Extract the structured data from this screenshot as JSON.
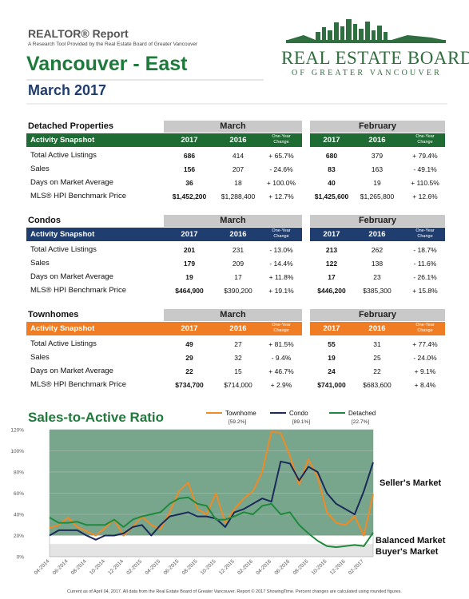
{
  "header": {
    "report_title": "REALTOR® Report",
    "tagline": "A Research Tool Provided by the Real Estate Board of Greater Vancouver",
    "area": "Vancouver - East",
    "period": "March 2017"
  },
  "logo": {
    "line1": "REAL ESTATE BOARD",
    "line2": "OF GREATER VANCOUVER"
  },
  "sections": [
    {
      "name": "Detached Properties",
      "snapshot": "Activity Snapshot",
      "color": "#1e6b34",
      "groups": [
        "March",
        "February"
      ],
      "columns": [
        "2017",
        "2016",
        "One-Year Change"
      ],
      "rows": [
        {
          "label": "Total Active Listings",
          "cells": [
            "686",
            "414",
            "+ 65.7%",
            "680",
            "379",
            "+ 79.4%"
          ]
        },
        {
          "label": "Sales",
          "cells": [
            "156",
            "207",
            "- 24.6%",
            "83",
            "163",
            "- 49.1%"
          ]
        },
        {
          "label": "Days on Market Average",
          "cells": [
            "36",
            "18",
            "+ 100.0%",
            "40",
            "19",
            "+ 110.5%"
          ]
        },
        {
          "label": "MLS® HPI Benchmark Price",
          "cells": [
            "$1,452,200",
            "$1,288,400",
            "+ 12.7%",
            "$1,425,600",
            "$1,265,800",
            "+ 12.6%"
          ]
        }
      ]
    },
    {
      "name": "Condos",
      "snapshot": "Activity Snapshot",
      "color": "#1f3d6e",
      "groups": [
        "March",
        "February"
      ],
      "columns": [
        "2017",
        "2016",
        "One-Year Change"
      ],
      "rows": [
        {
          "label": "Total Active Listings",
          "cells": [
            "201",
            "231",
            "- 13.0%",
            "213",
            "262",
            "- 18.7%"
          ]
        },
        {
          "label": "Sales",
          "cells": [
            "179",
            "209",
            "- 14.4%",
            "122",
            "138",
            "- 11.6%"
          ]
        },
        {
          "label": "Days on Market Average",
          "cells": [
            "19",
            "17",
            "+ 11.8%",
            "17",
            "23",
            "- 26.1%"
          ]
        },
        {
          "label": "MLS® HPI Benchmark Price",
          "cells": [
            "$464,900",
            "$390,200",
            "+ 19.1%",
            "$446,200",
            "$385,300",
            "+ 15.8%"
          ]
        }
      ]
    },
    {
      "name": "Townhomes",
      "snapshot": "Activity Snapshot",
      "color": "#f07d24",
      "groups": [
        "March",
        "February"
      ],
      "columns": [
        "2017",
        "2016",
        "One-Year Change"
      ],
      "rows": [
        {
          "label": "Total Active Listings",
          "cells": [
            "49",
            "27",
            "+ 81.5%",
            "55",
            "31",
            "+ 77.4%"
          ]
        },
        {
          "label": "Sales",
          "cells": [
            "29",
            "32",
            "- 9.4%",
            "19",
            "25",
            "- 24.0%"
          ]
        },
        {
          "label": "Days on Market Average",
          "cells": [
            "22",
            "15",
            "+ 46.7%",
            "24",
            "22",
            "+ 9.1%"
          ]
        },
        {
          "label": "MLS® HPI Benchmark Price",
          "cells": [
            "$734,700",
            "$714,000",
            "+ 2.9%",
            "$741,000",
            "$683,600",
            "+ 8.4%"
          ]
        }
      ]
    }
  ],
  "chart_data": {
    "type": "line",
    "title": "Sales-to-Active Ratio",
    "categories": [
      "04-2014",
      null,
      "06-2014",
      null,
      "08-2014",
      null,
      "10-2014",
      null,
      "12-2014",
      null,
      "02-2015",
      null,
      "04-2015",
      null,
      "06-2015",
      null,
      "08-2015",
      null,
      "10-2015",
      null,
      "12-2015",
      null,
      "02-2016",
      null,
      "04-2016",
      null,
      "06-2016",
      null,
      "08-2016",
      null,
      "10-2016",
      null,
      "12-2016",
      null,
      "02-2017",
      null
    ],
    "series": [
      {
        "name": "Townhome",
        "last_label": "[59.2%]",
        "color": "#f08a24",
        "values": [
          27,
          30,
          37,
          28,
          24,
          20,
          27,
          35,
          20,
          28,
          38,
          30,
          26,
          42,
          62,
          70,
          45,
          40,
          60,
          32,
          45,
          55,
          62,
          80,
          118,
          117,
          95,
          68,
          92,
          75,
          42,
          32,
          30,
          38,
          20,
          59.2
        ]
      },
      {
        "name": "Condo",
        "last_label": "[89.1%]",
        "color": "#1c2a5a",
        "values": [
          20,
          25,
          25,
          25,
          20,
          16,
          20,
          20,
          22,
          28,
          30,
          20,
          30,
          38,
          40,
          42,
          38,
          38,
          36,
          28,
          42,
          45,
          50,
          55,
          52,
          90,
          88,
          72,
          85,
          80,
          60,
          50,
          45,
          40,
          62,
          89.1
        ]
      },
      {
        "name": "Detached",
        "last_label": "[22.7%]",
        "color": "#1e8a3c",
        "values": [
          37,
          32,
          32,
          33,
          30,
          30,
          30,
          35,
          28,
          35,
          38,
          40,
          42,
          50,
          55,
          56,
          50,
          48,
          35,
          35,
          38,
          42,
          40,
          48,
          50,
          40,
          42,
          30,
          22,
          15,
          10,
          9,
          10,
          11,
          10,
          22.7
        ]
      }
    ],
    "ylim": [
      0,
      120
    ],
    "yticks": [
      {
        "value": 0,
        "label": "0%"
      },
      {
        "value": 20,
        "label": "20%"
      },
      {
        "value": 40,
        "label": "40%"
      },
      {
        "value": 60,
        "label": "60%"
      },
      {
        "value": 80,
        "label": "80%"
      },
      {
        "value": 100,
        "label": "100%"
      },
      {
        "value": 120,
        "label": "120%"
      }
    ],
    "zones": [
      {
        "label": "Seller's Market",
        "from": 20,
        "to": 120,
        "color": "#77a68c"
      },
      {
        "label": "Balanced Market",
        "from": 12,
        "to": 20,
        "color": "#ffffff"
      },
      {
        "label": "Buyer's Market",
        "from": 0,
        "to": 12,
        "color": "#e4e4e4"
      }
    ]
  },
  "footer": "Current as of April 04, 2017. All data from the Real Estate Board of Greater Vancouver. Report © 2017 ShowingTime. Percent changes are calculated using rounded figures."
}
